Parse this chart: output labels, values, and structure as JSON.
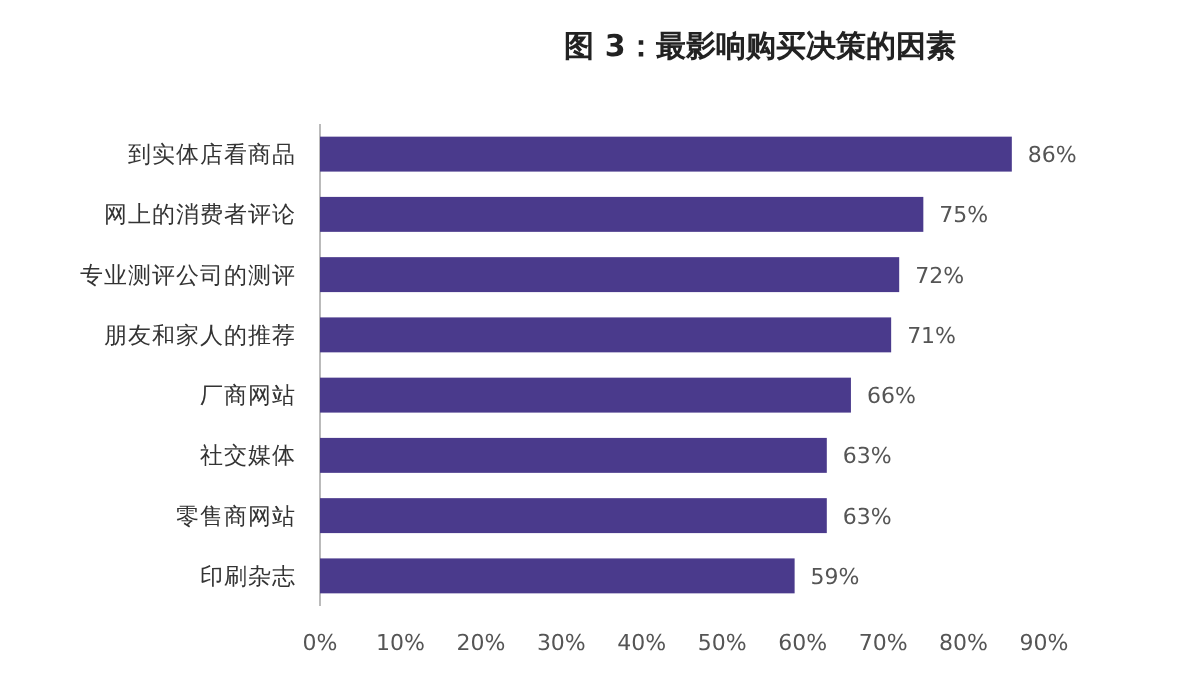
{
  "chart_data": {
    "type": "bar",
    "orientation": "horizontal",
    "title": "图 3：最影响购买决策的因素",
    "categories": [
      "到实体店看商品",
      "网上的消费者评论",
      "专业测评公司的测评",
      "朋友和家人的推荐",
      "厂商网站",
      "社交媒体",
      "零售商网站",
      "印刷杂志"
    ],
    "values": [
      86,
      75,
      72,
      71,
      66,
      63,
      63,
      59
    ],
    "value_labels": [
      "86%",
      "75%",
      "72%",
      "71%",
      "66%",
      "63%",
      "63%",
      "59%"
    ],
    "color": "#4a3a8c",
    "xlim": [
      0,
      90
    ],
    "xticks": [
      {
        "value": 0,
        "label": "0%"
      },
      {
        "value": 10,
        "label": "10%"
      },
      {
        "value": 20,
        "label": "20%"
      },
      {
        "value": 30,
        "label": "30%"
      },
      {
        "value": 40,
        "label": "40%"
      },
      {
        "value": 50,
        "label": "50%"
      },
      {
        "value": 60,
        "label": "60%"
      },
      {
        "value": 70,
        "label": "70%"
      },
      {
        "value": 80,
        "label": "80%"
      },
      {
        "value": 90,
        "label": "90%"
      }
    ],
    "grid": false
  }
}
